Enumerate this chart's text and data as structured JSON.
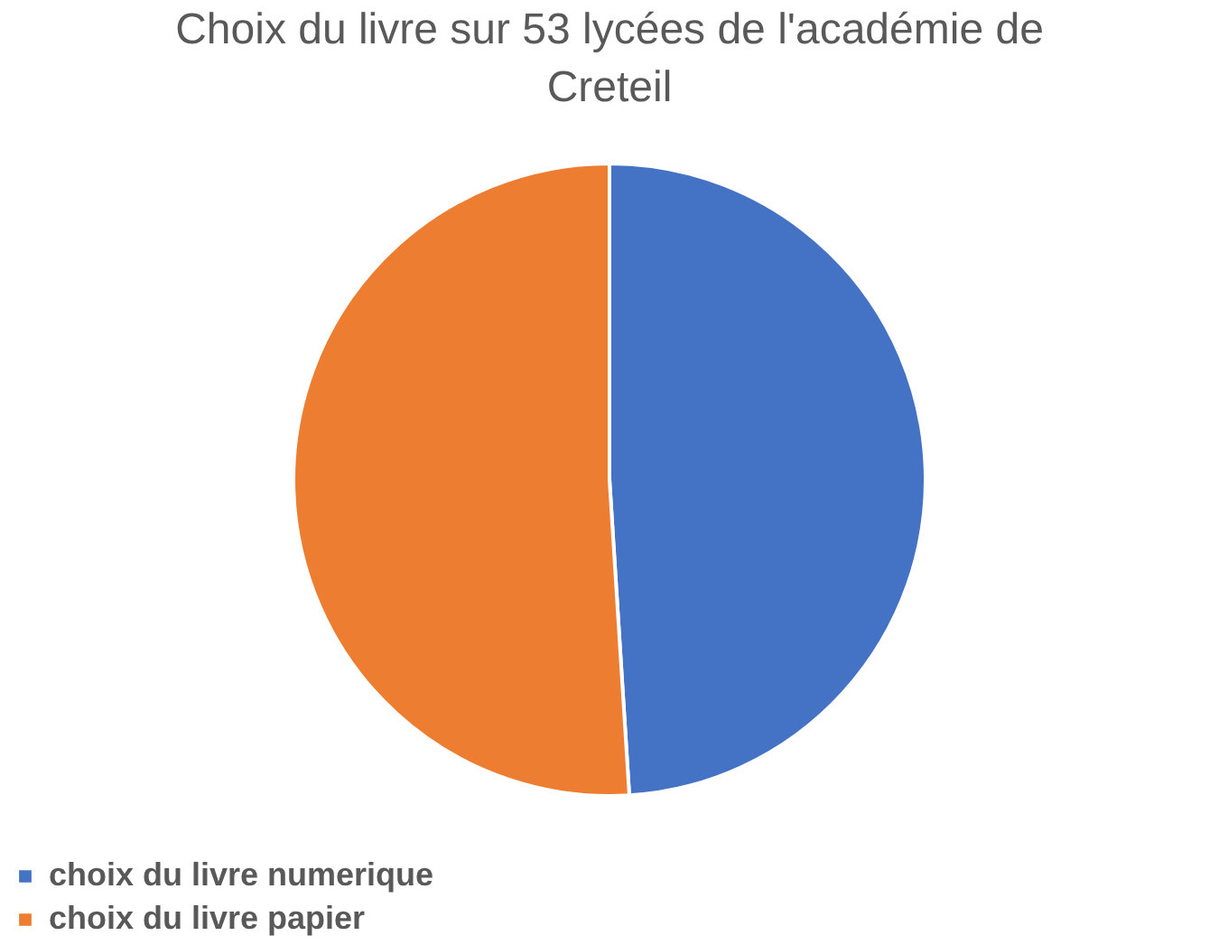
{
  "chart_data": {
    "type": "pie",
    "title": "Choix du livre sur 53 lycées de l'académie de Creteil",
    "categories": [
      "choix du livre numerique",
      "choix du livre papier"
    ],
    "values": [
      49,
      51
    ],
    "colors": [
      "#4472c4",
      "#ed7d31"
    ],
    "legend": "bottom"
  }
}
